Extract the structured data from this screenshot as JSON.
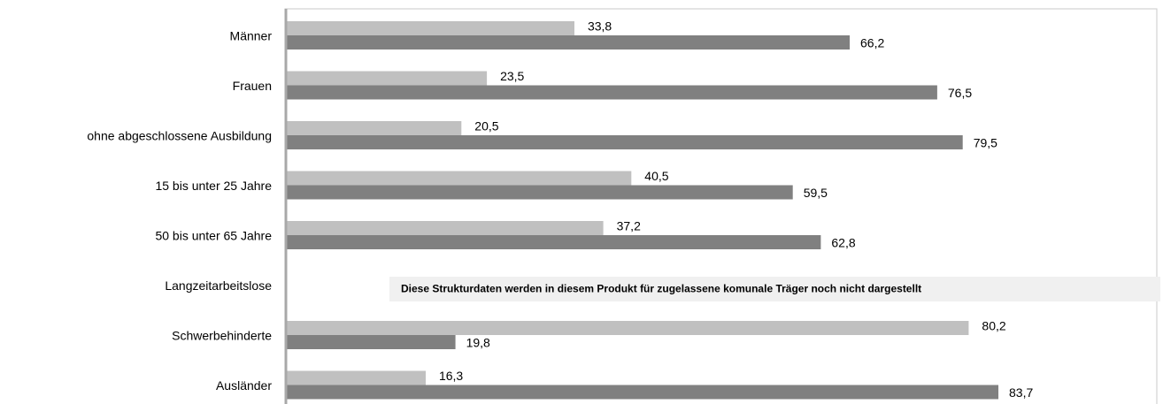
{
  "chart_data": {
    "type": "hbar",
    "categories": [
      "Männer",
      "Frauen",
      "ohne abgeschlossene Ausbildung",
      "15 bis unter 25 Jahre",
      "50 bis unter 65 Jahre",
      "Langzeitarbeitslose",
      "Schwerbehinderte",
      "Ausländer"
    ],
    "series": [
      {
        "color": "#c0c0c0",
        "values": [
          33.8,
          23.5,
          20.5,
          40.5,
          37.2,
          null,
          80.2,
          16.3
        ],
        "value_labels": [
          "33,8",
          "23,5",
          "20,5",
          "40,5",
          "37,2",
          null,
          "80,2",
          "16,3"
        ]
      },
      {
        "color": "#808080",
        "values": [
          66.2,
          76.5,
          79.5,
          59.5,
          62.8,
          null,
          19.8,
          83.7
        ],
        "value_labels": [
          "66,2",
          "76,5",
          "79,5",
          "59,5",
          "62,8",
          null,
          "19,8",
          "83,7"
        ]
      }
    ],
    "xlim": [
      0,
      100
    ],
    "annotation": "Diese Strukturdaten werden in diesem Produkt für zugelassene komunale Träger noch nicht dargestellt"
  }
}
